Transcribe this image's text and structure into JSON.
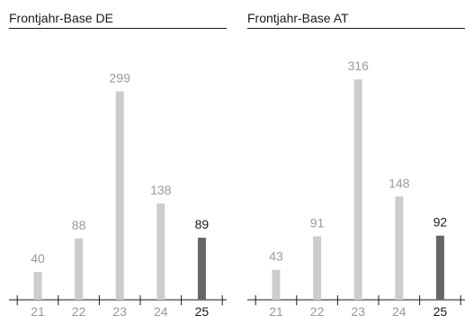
{
  "chart_data": [
    {
      "type": "bar",
      "title": "Frontjahr-Base DE",
      "categories": [
        "21",
        "22",
        "23",
        "24",
        "25"
      ],
      "values": [
        40,
        88,
        299,
        138,
        89
      ],
      "highlight_index": 4,
      "colors": {
        "bar": "#cccccc",
        "highlight": "#666666",
        "label": "#999999",
        "highlight_label": "#1a1a1a",
        "axis": "#1a1a1a"
      }
    },
    {
      "type": "bar",
      "title": "Frontjahr-Base AT",
      "categories": [
        "21",
        "22",
        "23",
        "24",
        "25"
      ],
      "values": [
        43,
        91,
        316,
        148,
        92
      ],
      "highlight_index": 4,
      "colors": {
        "bar": "#cccccc",
        "highlight": "#666666",
        "label": "#999999",
        "highlight_label": "#1a1a1a",
        "axis": "#1a1a1a"
      }
    }
  ]
}
